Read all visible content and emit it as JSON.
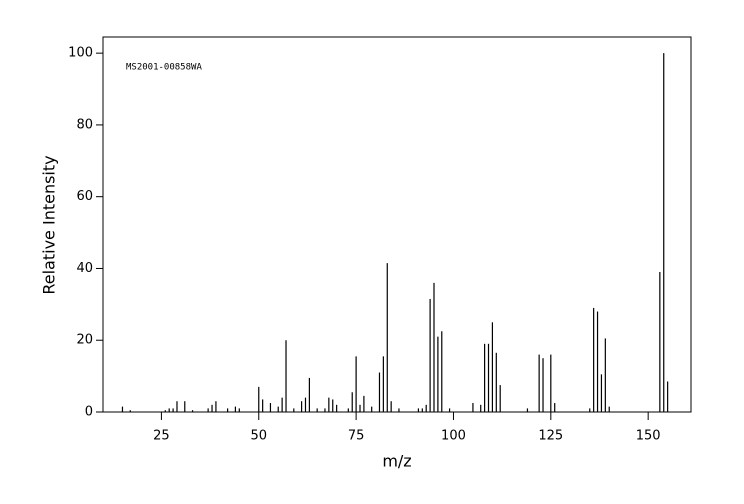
{
  "chart_data": {
    "type": "bar",
    "annotation": "MS2001-00858WA",
    "xlabel": "m/z",
    "ylabel": "Relative Intensity",
    "x": [
      15,
      17,
      26,
      27,
      28,
      29,
      31,
      33,
      37,
      38,
      39,
      42,
      44,
      45,
      50,
      51,
      53,
      55,
      56,
      57,
      59,
      61,
      62,
      63,
      65,
      67,
      68,
      69,
      70,
      73,
      74,
      75,
      76,
      77,
      79,
      81,
      82,
      83,
      84,
      86,
      91,
      92,
      93,
      94,
      95,
      96,
      97,
      99,
      105,
      107,
      108,
      109,
      110,
      111,
      112,
      119,
      122,
      123,
      125,
      126,
      135,
      136,
      137,
      138,
      139,
      140,
      153,
      154,
      155
    ],
    "values": [
      1.5,
      0.5,
      0.5,
      1,
      1,
      3,
      3,
      0.5,
      1,
      2,
      3,
      1,
      1.5,
      1,
      7,
      3.5,
      2.5,
      1.5,
      4,
      20,
      1,
      3,
      4,
      9.5,
      1,
      1,
      4,
      3.5,
      2,
      1,
      5.5,
      15.5,
      2,
      4.5,
      1.5,
      11,
      15.5,
      41.5,
      3,
      1,
      1,
      1,
      2,
      31.5,
      36,
      21,
      22.5,
      1,
      2.5,
      2,
      19,
      19,
      25,
      16.5,
      7.5,
      1,
      16,
      15,
      16,
      2.5,
      1,
      29,
      28,
      10.5,
      20.5,
      1.5,
      39,
      100,
      8.5
    ],
    "color": "#000000",
    "xlim": [
      10,
      161
    ],
    "ylim": [
      0,
      104.5
    ],
    "xticks": [
      25,
      50,
      75,
      100,
      125,
      150
    ],
    "yticks": [
      0,
      20,
      40,
      60,
      80,
      100
    ]
  }
}
